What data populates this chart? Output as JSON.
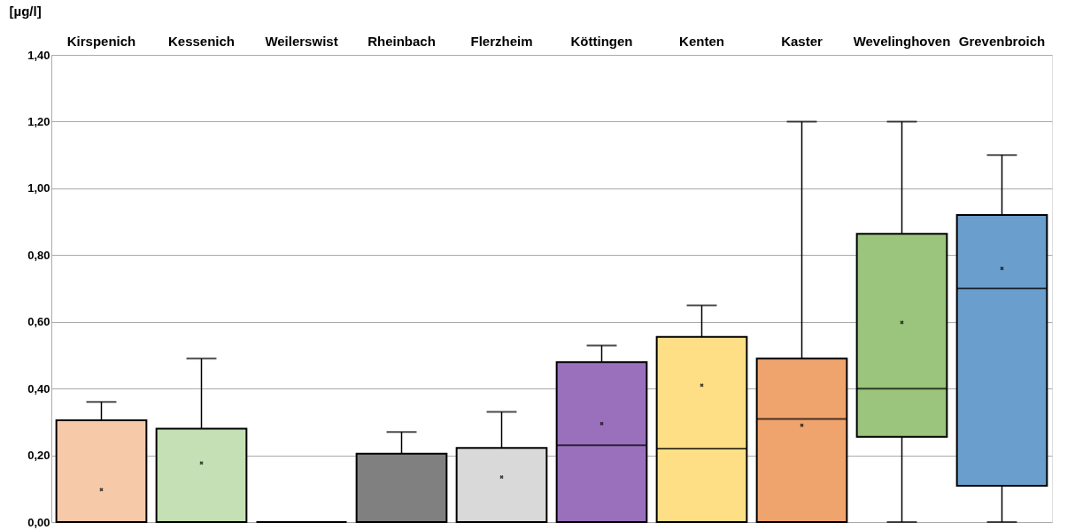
{
  "chart_data": {
    "type": "box",
    "ylabel": "[µg/l]",
    "categories": [
      "Kirspenich",
      "Kessenich",
      "Weilerswist",
      "Rheinbach",
      "Flerzheim",
      "Köttingen",
      "Kenten",
      "Kaster",
      "Wevelinghoven",
      "Grevenbroich"
    ],
    "colors": [
      "#f6c9a9",
      "#c5e0b4",
      "#000000",
      "#808080",
      "#d9d9d9",
      "#9a70bd",
      "#ffdf86",
      "#f0a46d",
      "#9bc47c",
      "#6a9ecc"
    ],
    "boxes": [
      {
        "low": 0,
        "q1": 0,
        "median": 0,
        "q3": 0.305,
        "high": 0.36,
        "mean": 0.097
      },
      {
        "low": 0,
        "q1": 0,
        "median": 0,
        "q3": 0.28,
        "high": 0.49,
        "mean": 0.177
      },
      {
        "low": 0,
        "q1": 0,
        "median": 0,
        "q3": 0,
        "high": 0
      },
      {
        "low": 0,
        "q1": 0,
        "median": 0,
        "q3": 0.205,
        "high": 0.27
      },
      {
        "low": 0,
        "q1": 0,
        "median": 0,
        "q3": 0.222,
        "high": 0.33,
        "mean": 0.135
      },
      {
        "low": 0,
        "q1": 0,
        "median": 0.23,
        "q3": 0.479,
        "high": 0.529,
        "mean": 0.295
      },
      {
        "low": 0,
        "q1": 0,
        "median": 0.22,
        "q3": 0.555,
        "high": 0.649,
        "mean": 0.41
      },
      {
        "low": 0,
        "q1": 0,
        "median": 0.309,
        "q3": 0.49,
        "high": 1.2,
        "mean": 0.29
      },
      {
        "low": 0,
        "q1": 0.255,
        "median": 0.4,
        "q3": 0.864,
        "high": 1.2,
        "mean": 0.598
      },
      {
        "low": 0,
        "q1": 0.109,
        "median": 0.7,
        "q3": 0.92,
        "high": 1.1,
        "mean": 0.76
      }
    ],
    "ylim": [
      0,
      1.4
    ],
    "yticks": [
      {
        "value": 0,
        "label": "0,00"
      },
      {
        "value": 0.2,
        "label": "0,20"
      },
      {
        "value": 0.4,
        "label": "0,40"
      },
      {
        "value": 0.6,
        "label": "0,60"
      },
      {
        "value": 0.8,
        "label": "0,80"
      },
      {
        "value": 1.0,
        "label": "1,00"
      },
      {
        "value": 1.2,
        "label": "1,20"
      },
      {
        "value": 1.4,
        "label": "1,40"
      }
    ],
    "grid": "y",
    "legend": false
  }
}
